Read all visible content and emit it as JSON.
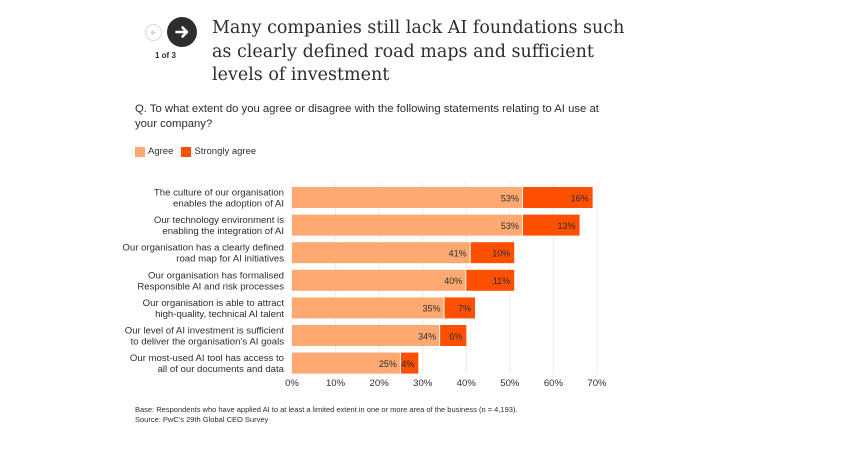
{
  "header": {
    "title": "Many companies still lack AI foundations such as clearly defined road maps and sufficient levels of investment",
    "nav": {
      "prev_icon": "arrow-left-icon",
      "next_icon": "arrow-right-icon",
      "counter": "1 of 3"
    }
  },
  "question": "Q. To what extent do you agree or disagree with the following statements relating to AI use at your company?",
  "colors": {
    "agree": "#fda971",
    "strongly_agree": "#fe5000",
    "grid": "#ececec",
    "text": "#2d2d2d"
  },
  "chart_data": {
    "type": "bar",
    "orientation": "horizontal",
    "stacked": true,
    "title": "Many companies still lack AI foundations such as clearly defined road maps and sufficient levels of investment",
    "xlabel": "",
    "ylabel": "",
    "xlim": [
      0,
      70
    ],
    "x_ticks": [
      "0%",
      "10%",
      "20%",
      "30%",
      "40%",
      "50%",
      "60%",
      "70%"
    ],
    "x_tick_values": [
      0,
      10,
      20,
      30,
      40,
      50,
      60,
      70
    ],
    "grid": true,
    "legend_position": "top-left",
    "categories": [
      [
        "The culture of our organisation",
        "enables the adoption of AI"
      ],
      [
        "Our technology environment is",
        "enabling the integration of AI"
      ],
      [
        "Our organisation has a clearly defined",
        "road map for AI initiatives"
      ],
      [
        "Our organisation has formalised",
        "Responsible AI and risk processes"
      ],
      [
        "Our organisation is able to attract",
        "high-quality, technical AI talent"
      ],
      [
        "Our level of AI investment is sufficient",
        "to deliver the organisation’s AI goals"
      ],
      [
        "Our most-used AI tool has access to",
        "all of our documents and data"
      ]
    ],
    "series": [
      {
        "name": "Agree",
        "values": [
          53,
          53,
          41,
          40,
          35,
          34,
          25
        ],
        "labels": [
          "53%",
          "53%",
          "41%",
          "40%",
          "35%",
          "34%",
          "25%"
        ]
      },
      {
        "name": "Strongly agree",
        "values": [
          16,
          13,
          10,
          11,
          7,
          6,
          4
        ],
        "labels": [
          "16%",
          "13%",
          "10%",
          "11%",
          "7%",
          "6%",
          "4%"
        ]
      }
    ]
  },
  "legend": {
    "items": [
      {
        "label": "Agree"
      },
      {
        "label": "Strongly agree"
      }
    ]
  },
  "footnote": {
    "base": "Base: Respondents who have applied AI to at least a limited extent in one or more area of the business (n = 4,193).",
    "source": "Source: PwC’s 29th Global CEO Survey"
  }
}
